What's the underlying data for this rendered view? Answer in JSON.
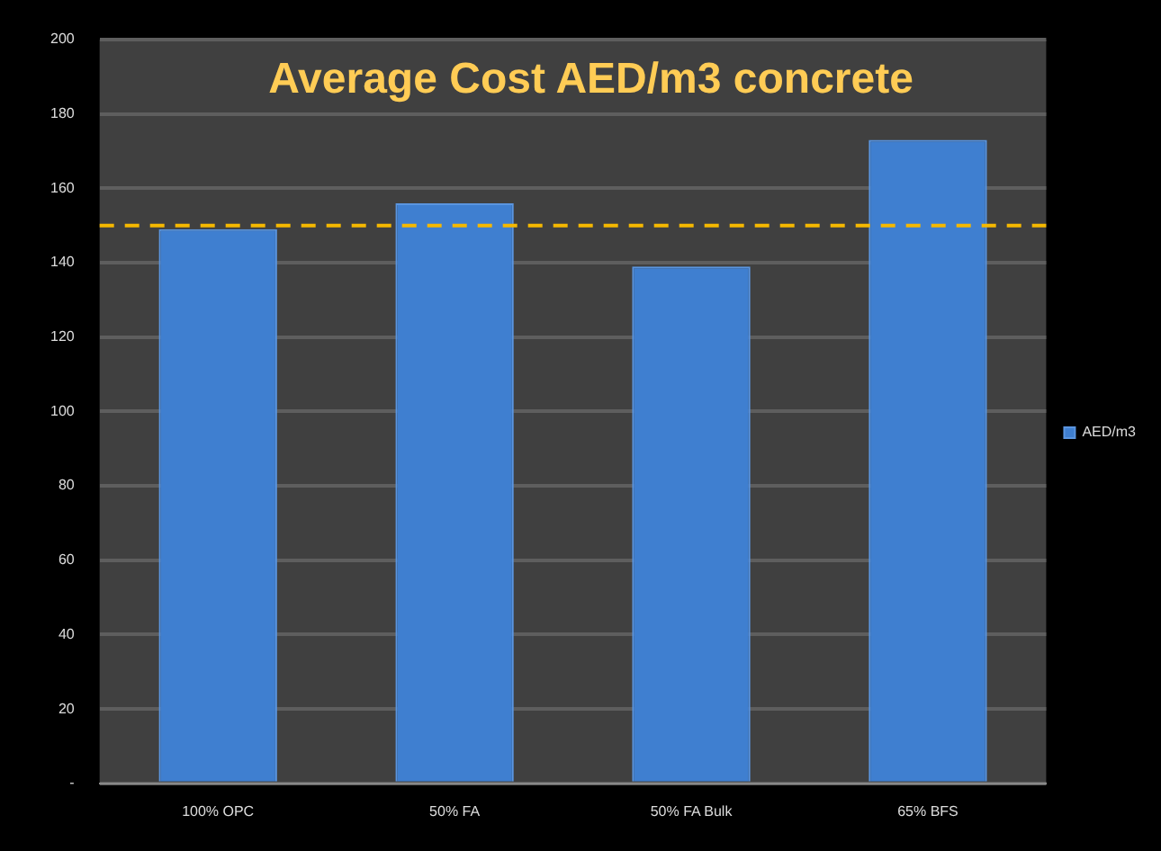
{
  "chart_data": {
    "type": "bar",
    "title": "Average Cost AED/m3 concrete",
    "categories": [
      "100% OPC",
      "50% FA",
      "50% FA Bulk",
      "65% BFS"
    ],
    "series": [
      {
        "name": "AED/m3",
        "color": "#3f7fd0",
        "values": [
          149,
          156,
          139,
          173
        ]
      }
    ],
    "ylim": [
      0,
      200
    ],
    "yticks": [
      {
        "value": 0,
        "label": "-"
      },
      20,
      40,
      60,
      80,
      100,
      120,
      140,
      160,
      180,
      200
    ],
    "grid": "y",
    "legend": "right",
    "ref_lines": [
      {
        "axis": "y",
        "value": 150,
        "color": "#f5b800",
        "line_style": "dashed"
      }
    ]
  }
}
